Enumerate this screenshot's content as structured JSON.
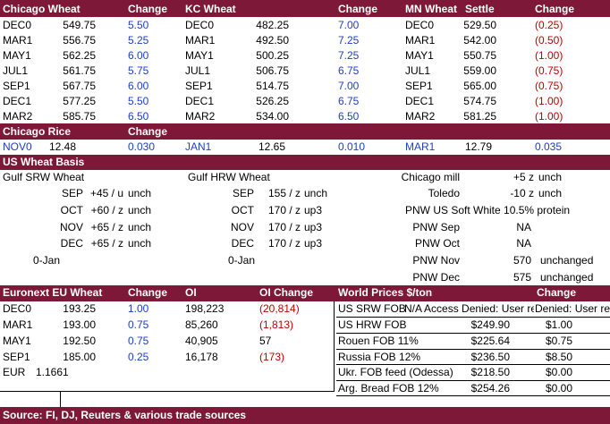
{
  "futures": {
    "headers": [
      "Chicago Wheat",
      "Change",
      "KC Wheat",
      "Change",
      "MN Wheat",
      "Settle",
      "Change"
    ],
    "rows": [
      [
        "DEC0",
        "549.75",
        "5.50",
        "DEC0",
        "482.25",
        "7.00",
        "DEC0",
        "529.50",
        "(0.25)"
      ],
      [
        "MAR1",
        "556.75",
        "5.25",
        "MAR1",
        "492.50",
        "7.25",
        "MAR1",
        "542.00",
        "(0.50)"
      ],
      [
        "MAY1",
        "562.25",
        "6.00",
        "MAY1",
        "500.25",
        "7.25",
        "MAY1",
        "550.75",
        "(1.00)"
      ],
      [
        "JUL1",
        "561.75",
        "5.75",
        "JUL1",
        "506.75",
        "6.75",
        "JUL1",
        "559.00",
        "(0.75)"
      ],
      [
        "SEP1",
        "567.75",
        "6.00",
        "SEP1",
        "514.75",
        "7.00",
        "SEP1",
        "565.00",
        "(0.75)"
      ],
      [
        "DEC1",
        "577.25",
        "5.50",
        "DEC1",
        "526.25",
        "6.75",
        "DEC1",
        "574.75",
        "(1.00)"
      ],
      [
        "MAR2",
        "585.75",
        "6.50",
        "MAR2",
        "534.00",
        "6.50",
        "MAR2",
        "581.25",
        "(1.00)"
      ]
    ]
  },
  "rice": {
    "headers": [
      "Chicago Rice",
      "Change"
    ],
    "row": [
      "NOV0",
      "12.48",
      "0.030",
      "JAN1",
      "12.65",
      "0.010",
      "MAR1",
      "12.79",
      "0.035"
    ]
  },
  "basis": {
    "title": "US Wheat Basis",
    "gulf_srw": {
      "title": "Gulf SRW Wheat",
      "rows": [
        [
          "SEP",
          "+45 / u",
          "unch"
        ],
        [
          "OCT",
          "+60 / z",
          "unch"
        ],
        [
          "NOV",
          "+65 / z",
          "unch"
        ],
        [
          "DEC",
          "+65 / z",
          "unch"
        ]
      ],
      "extra": "0-Jan"
    },
    "gulf_hrw": {
      "title": "Gulf HRW Wheat",
      "rows": [
        [
          "SEP",
          "155 / z",
          "unch"
        ],
        [
          "OCT",
          "170 / z",
          "up3"
        ],
        [
          "NOV",
          "170 / z",
          "up3"
        ],
        [
          "DEC",
          "170 / z",
          "up3"
        ]
      ],
      "extra": "0-Jan"
    },
    "mills": [
      [
        "Chicago mill",
        "+5 z",
        "unch"
      ],
      [
        "Toledo",
        "-10 z",
        "unch"
      ]
    ],
    "pnw_note": "PNW US Soft White 10.5% protein",
    "pnw": [
      [
        "PNW Sep",
        "NA"
      ],
      [
        "PNW Oct",
        "NA"
      ],
      [
        "PNW Nov",
        "570",
        "unchanged"
      ],
      [
        "PNW Dec",
        "575",
        "unchanged"
      ]
    ]
  },
  "euronext": {
    "headers": [
      "Euronext EU Wheat",
      "Change",
      "OI",
      "OI Change"
    ],
    "rows": [
      [
        "DEC0",
        "193.25",
        "1.00",
        "198,223",
        "(20,814)"
      ],
      [
        "MAR1",
        "193.00",
        "0.75",
        "85,260",
        "(1,813)"
      ],
      [
        "MAY1",
        "192.50",
        "0.75",
        "40,905",
        "57"
      ],
      [
        "SEP1",
        "185.00",
        "0.25",
        "16,178",
        "(173)"
      ]
    ],
    "eur": [
      "EUR",
      "1.1661"
    ]
  },
  "world": {
    "headers": [
      "World Prices $/ton",
      "Change"
    ],
    "rows": [
      [
        "US SRW FOB",
        "N/A Access Denied: User re",
        "Denied: User re"
      ],
      [
        "US HRW FOB",
        "$249.90",
        "$1.00"
      ],
      [
        "Rouen FOB 11%",
        "$225.64",
        "$0.75"
      ],
      [
        "Russia FOB 12%",
        "$236.50",
        "$8.50"
      ],
      [
        "Ukr. FOB feed (Odessa)",
        "$218.50",
        "$0.00"
      ],
      [
        "Arg. Bread FOB 12%",
        "$254.26",
        "$0.00"
      ]
    ]
  },
  "footer": "Source: FI, DJ, Reuters & various trade sources"
}
